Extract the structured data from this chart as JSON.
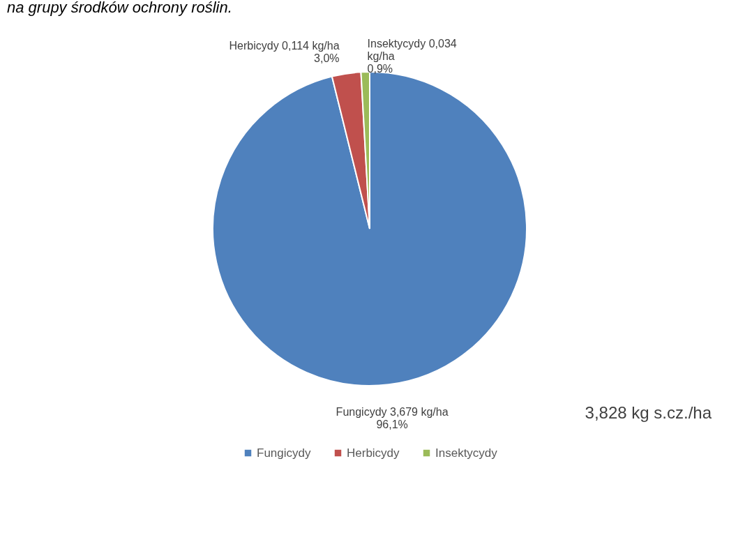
{
  "chart_data": {
    "type": "pie",
    "title": "na grupy środków ochrony roślin.",
    "categories": [
      "Fungicydy",
      "Herbicydy",
      "Insektycydy"
    ],
    "values": [
      3.679,
      0.114,
      0.034
    ],
    "colors": [
      "#4f81bd",
      "#c0504d",
      "#9bbb59"
    ],
    "value_labels": [
      "Fungicydy 3,679 kg/ha\n96,1%",
      "Herbicydy 0,114 kg/ha\n3,0%",
      "Insektycydy 0,034\nkg/ha\n0,9%"
    ],
    "legend": "bottom",
    "annotations": [
      "3,828 kg s.cz./ha"
    ]
  }
}
